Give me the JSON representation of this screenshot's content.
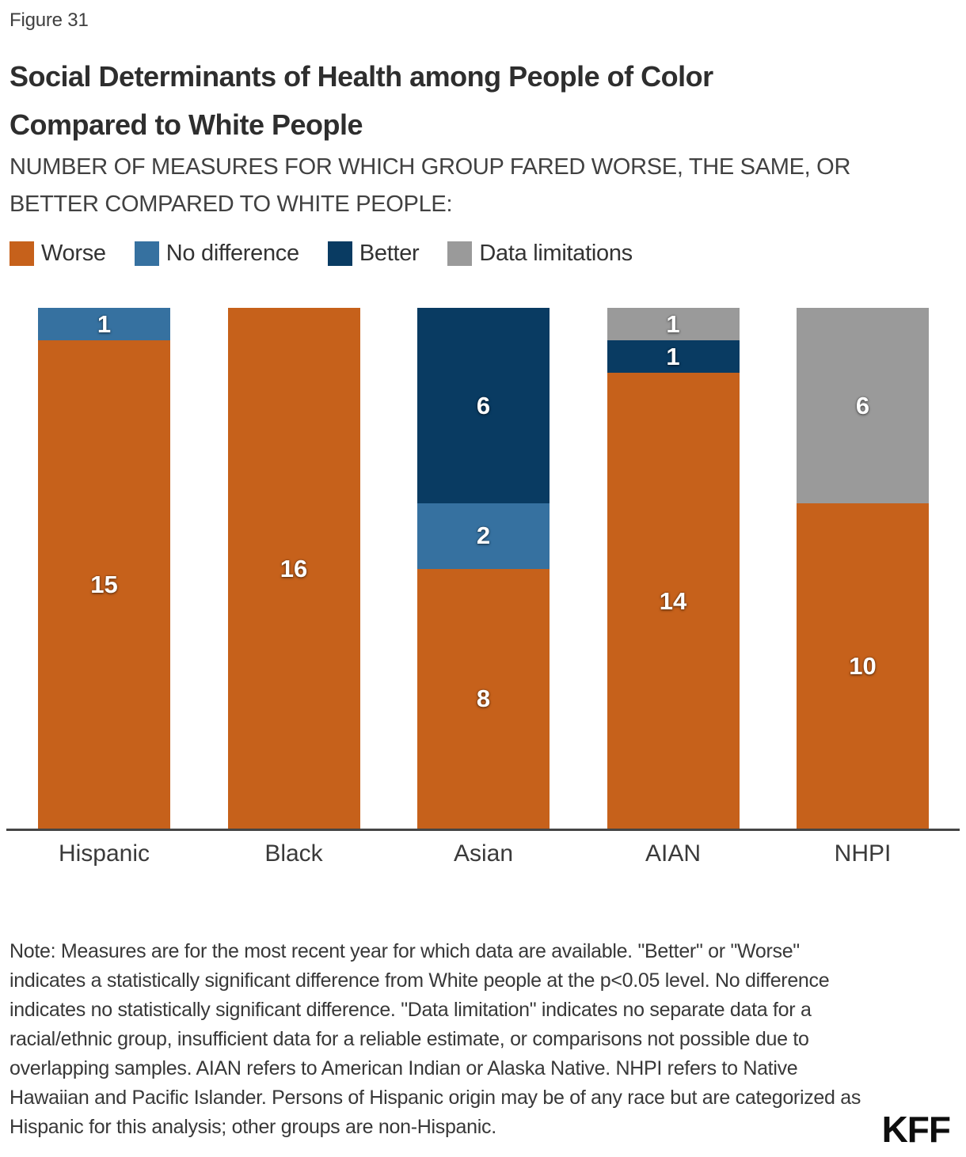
{
  "figure_label": "Figure 31",
  "title_lines": [
    "Social Determinants of Health among People of Color",
    "Compared to White People"
  ],
  "subtitle_lines": [
    "NUMBER OF MEASURES FOR WHICH GROUP FARED WORSE, THE SAME, OR",
    "BETTER COMPARED TO WHITE PEOPLE:"
  ],
  "legend": [
    {
      "label": "Worse",
      "color": "#C6611B"
    },
    {
      "label": "No difference",
      "color": "#3671A0"
    },
    {
      "label": "Better",
      "color": "#093B62"
    },
    {
      "label": "Data limitations",
      "color": "#9A9A9A"
    }
  ],
  "chart_data": {
    "type": "bar",
    "stacked": true,
    "categories": [
      "Hispanic",
      "Black",
      "Asian",
      "AIAN",
      "NHPI"
    ],
    "series": [
      {
        "name": "Worse",
        "color": "#C6611B",
        "values": [
          15,
          16,
          8,
          14,
          10
        ]
      },
      {
        "name": "No difference",
        "color": "#3671A0",
        "values": [
          1,
          0,
          2,
          0,
          0
        ]
      },
      {
        "name": "Better",
        "color": "#093B62",
        "values": [
          0,
          0,
          6,
          1,
          0
        ]
      },
      {
        "name": "Data limitations",
        "color": "#9A9A9A",
        "values": [
          0,
          0,
          0,
          1,
          6
        ]
      }
    ],
    "stack_order_top_to_bottom": [
      "Data limitations",
      "Better",
      "No difference",
      "Worse"
    ],
    "ylim": [
      0,
      16
    ],
    "legend_position": "top",
    "grid": false,
    "title": "Social Determinants of Health among People of Color Compared to White People",
    "xlabel": "",
    "ylabel": ""
  },
  "note": "Note: Measures are for the most recent year for which data are available. \"Better\" or \"Worse\" indicates a statistically significant difference from White people at the p<0.05 level. No difference indicates no statistically significant difference. \"Data limitation\" indicates no separate data for a racial/ethnic group, insufficient data for a reliable estimate, or comparisons not possible due to overlapping samples. AIAN refers to American Indian or Alaska Native. NHPI refers to Native Hawaiian and Pacific Islander. Persons of Hispanic origin may be of any race but are categorized as Hispanic for this analysis; other groups are non-Hispanic.",
  "logo_text": "KFF"
}
